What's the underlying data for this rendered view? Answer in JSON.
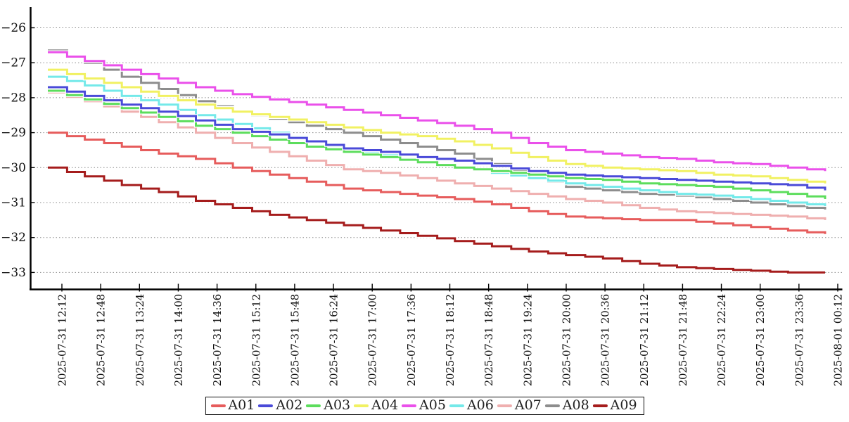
{
  "chart_data": {
    "type": "line",
    "line_style": "stepped",
    "title": "",
    "xlabel": "",
    "ylabel": "",
    "grid": "horizontal-dotted",
    "legend_position": "bottom-center",
    "axis_color": "#000000",
    "grid_color": "#8a8a8a",
    "y_ticks": [
      -26,
      -27,
      -28,
      -29,
      -30,
      -31,
      -32,
      -33
    ],
    "y_tick_labels": [
      "−26",
      "−27",
      "−28",
      "−29",
      "−30",
      "−31",
      "−32",
      "−33"
    ],
    "ylim": [
      -33.55,
      -25.55
    ],
    "x_tick_labels": [
      "2025-07-31 12:12",
      "2025-07-31 12:48",
      "2025-07-31 13:24",
      "2025-07-31 14:00",
      "2025-07-31 14:36",
      "2025-07-31 15:12",
      "2025-07-31 15:48",
      "2025-07-31 16:24",
      "2025-07-31 17:00",
      "2025-07-31 17:36",
      "2025-07-31 18:12",
      "2025-07-31 18:48",
      "2025-07-31 19:24",
      "2025-07-31 20:00",
      "2025-07-31 20:36",
      "2025-07-31 21:12",
      "2025-07-31 21:48",
      "2025-07-31 22:24",
      "2025-07-31 23:00",
      "2025-07-31 23:36",
      "2025-08-01 00:12"
    ],
    "series": [
      {
        "name": "A01",
        "color": "#e65c5c",
        "values": [
          -29.0,
          -29.2,
          -29.4,
          -29.6,
          -29.75,
          -30.0,
          -30.2,
          -30.4,
          -30.6,
          -30.7,
          -30.8,
          -30.9,
          -31.05,
          -31.25,
          -31.4,
          -31.45,
          -31.5,
          -31.5,
          -31.6,
          -31.7,
          -31.8,
          -31.9
        ]
      },
      {
        "name": "A02",
        "color": "#4a4ad8",
        "values": [
          -27.7,
          -27.95,
          -28.2,
          -28.4,
          -28.65,
          -28.9,
          -29.05,
          -29.25,
          -29.45,
          -29.55,
          -29.7,
          -29.8,
          -29.95,
          -30.1,
          -30.2,
          -30.25,
          -30.3,
          -30.35,
          -30.4,
          -30.45,
          -30.5,
          -30.65
        ]
      },
      {
        "name": "A03",
        "color": "#5cdd5c",
        "values": [
          -27.8,
          -28.05,
          -28.3,
          -28.55,
          -28.8,
          -29.0,
          -29.2,
          -29.4,
          -29.55,
          -29.7,
          -29.85,
          -30.0,
          -30.1,
          -30.2,
          -30.3,
          -30.35,
          -30.45,
          -30.5,
          -30.55,
          -30.65,
          -30.75,
          -30.9
        ]
      },
      {
        "name": "A04",
        "color": "#f1f162",
        "values": [
          -27.2,
          -27.45,
          -27.7,
          -27.95,
          -28.2,
          -28.4,
          -28.55,
          -28.7,
          -28.85,
          -29.0,
          -29.1,
          -29.25,
          -29.45,
          -29.7,
          -29.9,
          -30.0,
          -30.05,
          -30.1,
          -30.2,
          -30.25,
          -30.35,
          -30.45
        ]
      },
      {
        "name": "A05",
        "color": "#ea50ea",
        "values": [
          -26.7,
          -26.95,
          -27.2,
          -27.45,
          -27.7,
          -27.9,
          -28.05,
          -28.2,
          -28.35,
          -28.5,
          -28.65,
          -28.8,
          -29.0,
          -29.3,
          -29.5,
          -29.6,
          -29.7,
          -29.75,
          -29.85,
          -29.9,
          -30.0,
          -30.1
        ]
      },
      {
        "name": "A06",
        "color": "#74e9e9",
        "values": [
          -27.4,
          -27.65,
          -27.95,
          -28.2,
          -28.5,
          -28.75,
          -29.0,
          -29.25,
          -29.5,
          -29.65,
          -29.85,
          -30.0,
          -30.15,
          -30.3,
          -30.45,
          -30.55,
          -30.65,
          -30.75,
          -30.8,
          -30.9,
          -31.0,
          -31.1
        ]
      },
      {
        "name": "A07",
        "color": "#efafaf",
        "values": [
          -27.85,
          -28.1,
          -28.4,
          -28.7,
          -29.0,
          -29.3,
          -29.55,
          -29.8,
          -30.05,
          -30.15,
          -30.3,
          -30.45,
          -30.6,
          -30.75,
          -30.9,
          -31.0,
          -31.15,
          -31.25,
          -31.3,
          -31.35,
          -31.4,
          -31.5
        ]
      },
      {
        "name": "A08",
        "color": "#8d8d8d",
        "values": [
          -26.65,
          -27.0,
          -27.4,
          -27.75,
          -28.1,
          -28.4,
          -28.6,
          -28.8,
          -29.0,
          -29.2,
          -29.4,
          -29.6,
          -29.9,
          -30.25,
          -30.55,
          -30.65,
          -30.75,
          -30.8,
          -30.9,
          -31.0,
          -31.1,
          -31.2
        ]
      },
      {
        "name": "A09",
        "color": "#a51c1c",
        "values": [
          -30.0,
          -30.25,
          -30.5,
          -30.7,
          -30.95,
          -31.15,
          -31.35,
          -31.5,
          -31.65,
          -31.8,
          -31.95,
          -32.1,
          -32.25,
          -32.4,
          -32.5,
          -32.6,
          -32.75,
          -32.85,
          -32.9,
          -32.95,
          -33.0,
          -33.0
        ]
      }
    ]
  }
}
